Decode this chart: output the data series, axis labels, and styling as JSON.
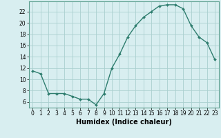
{
  "x": [
    0,
    1,
    2,
    3,
    4,
    5,
    6,
    7,
    8,
    9,
    10,
    11,
    12,
    13,
    14,
    15,
    16,
    17,
    18,
    19,
    20,
    21,
    22,
    23
  ],
  "y": [
    11.5,
    11.0,
    7.5,
    7.5,
    7.5,
    7.0,
    6.5,
    6.5,
    5.5,
    7.5,
    12.0,
    14.5,
    17.5,
    19.5,
    21.0,
    22.0,
    23.0,
    23.2,
    23.2,
    22.5,
    19.5,
    17.5,
    16.5,
    13.5
  ],
  "line_color": "#2e7d6e",
  "marker": "D",
  "marker_size": 2.0,
  "linewidth": 1.0,
  "bg_color": "#d8eef0",
  "grid_color": "#aacfcf",
  "xlabel": "Humidex (Indice chaleur)",
  "xlim": [
    -0.5,
    23.5
  ],
  "ylim": [
    5.0,
    23.8
  ],
  "xtick_labels": [
    "0",
    "1",
    "2",
    "3",
    "4",
    "5",
    "6",
    "7",
    "8",
    "9",
    "10",
    "11",
    "12",
    "13",
    "14",
    "15",
    "16",
    "17",
    "18",
    "19",
    "20",
    "21",
    "22",
    "23"
  ],
  "ytick_values": [
    6,
    8,
    10,
    12,
    14,
    16,
    18,
    20,
    22
  ],
  "tick_fontsize": 5.5,
  "xlabel_fontsize": 7.0,
  "axis_color": "#2e7d6e",
  "spine_color": "#5a9e8e"
}
